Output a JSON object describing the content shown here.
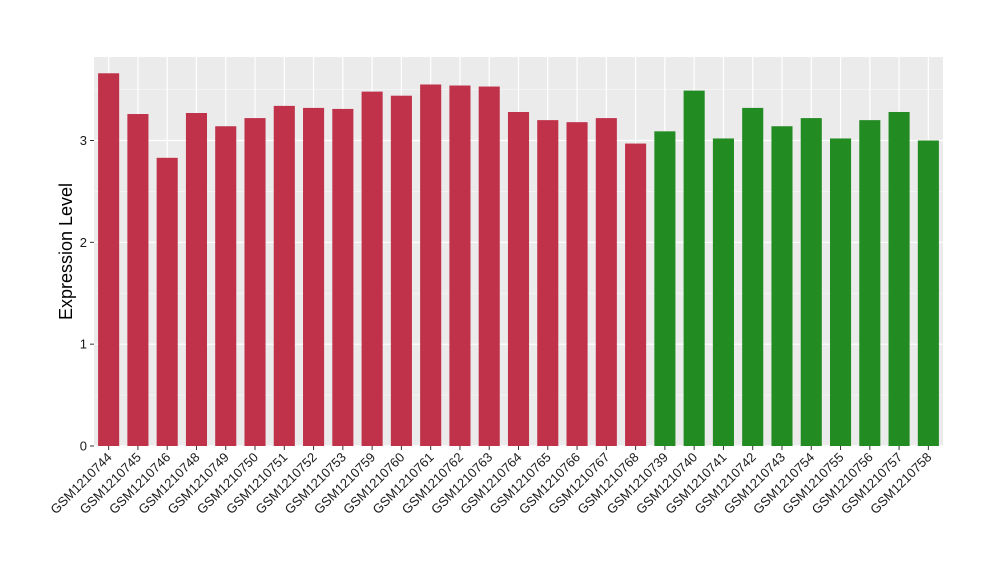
{
  "chart_data": {
    "type": "bar",
    "title": "",
    "xlabel": "",
    "ylabel": "Expression Level",
    "ylim": [
      0,
      3.82
    ],
    "yticks": [
      0,
      1,
      2,
      3
    ],
    "grid": true,
    "background": "#ebebeb",
    "categories": [
      "GSM1210744",
      "GSM1210745",
      "GSM1210746",
      "GSM1210748",
      "GSM1210749",
      "GSM1210750",
      "GSM1210751",
      "GSM1210752",
      "GSM1210753",
      "GSM1210759",
      "GSM1210760",
      "GSM1210761",
      "GSM1210762",
      "GSM1210763",
      "GSM1210764",
      "GSM1210765",
      "GSM1210766",
      "GSM1210767",
      "GSM1210768",
      "GSM1210739",
      "GSM1210740",
      "GSM1210741",
      "GSM1210742",
      "GSM1210743",
      "GSM1210754",
      "GSM1210755",
      "GSM1210756",
      "GSM1210757",
      "GSM1210758"
    ],
    "values": [
      3.66,
      3.26,
      2.83,
      3.27,
      3.14,
      3.22,
      3.34,
      3.32,
      3.31,
      3.48,
      3.44,
      3.55,
      3.54,
      3.53,
      3.28,
      3.2,
      3.18,
      3.22,
      2.97,
      3.09,
      3.49,
      3.02,
      3.32,
      3.14,
      3.22,
      3.02,
      3.2,
      3.28,
      3.0
    ],
    "colors": [
      "#c0314a",
      "#c0314a",
      "#c0314a",
      "#c0314a",
      "#c0314a",
      "#c0314a",
      "#c0314a",
      "#c0314a",
      "#c0314a",
      "#c0314a",
      "#c0314a",
      "#c0314a",
      "#c0314a",
      "#c0314a",
      "#c0314a",
      "#c0314a",
      "#c0314a",
      "#c0314a",
      "#c0314a",
      "#228b22",
      "#228b22",
      "#228b22",
      "#228b22",
      "#228b22",
      "#228b22",
      "#228b22",
      "#228b22",
      "#228b22",
      "#228b22"
    ]
  }
}
